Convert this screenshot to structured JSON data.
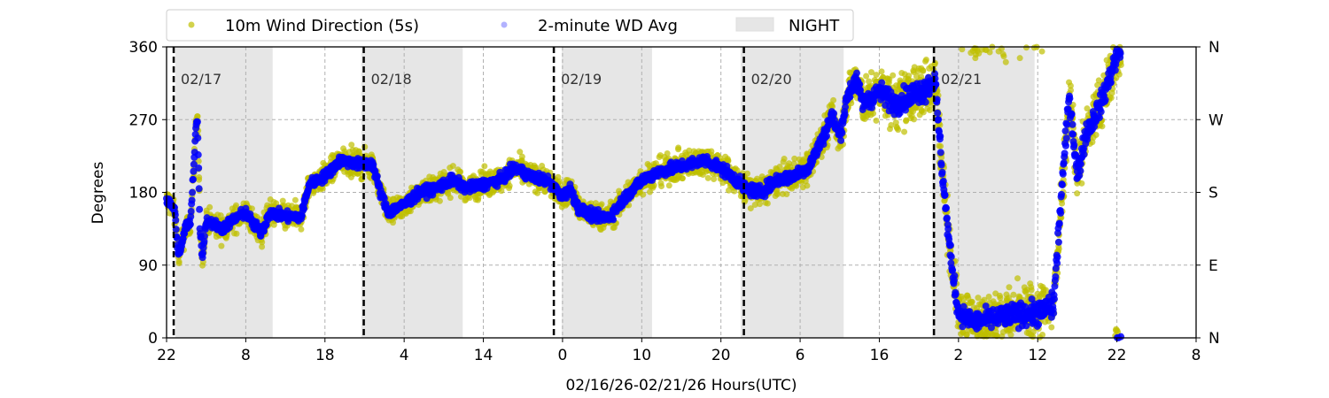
{
  "chart_data": {
    "type": "scatter",
    "title": "",
    "xlabel": "02/16/26-02/21/26  Hours(UTC)",
    "ylabel": "Degrees",
    "x_units": "hours since 02/16 22:00 UTC",
    "xlim": [
      0,
      130
    ],
    "ylim": [
      0,
      360
    ],
    "x_ticks": [
      0,
      10,
      20,
      30,
      40,
      50,
      60,
      70,
      80,
      90,
      100,
      110,
      120,
      130
    ],
    "x_tick_labels": [
      "22",
      "8",
      "18",
      "4",
      "14",
      "0",
      "10",
      "20",
      "6",
      "16",
      "2",
      "12",
      "22",
      "8"
    ],
    "y_ticks": [
      0,
      90,
      180,
      270,
      360
    ],
    "y_tick_labels": [
      "0",
      "90",
      "180",
      "270",
      "360"
    ],
    "right_axis_labels": [
      "N",
      "E",
      "S",
      "W",
      "N"
    ],
    "grid": true,
    "legend": {
      "placement": "top",
      "entries": [
        "10m Wind Direction (5s)",
        "2-minute WD Avg",
        "NIGHT"
      ]
    },
    "colors": {
      "wd_5s": "#bfbf00",
      "wd_avg": "#0000ff",
      "night": "#e6e6e6"
    },
    "day_markers": [
      {
        "x": 0.9,
        "label": "02/17"
      },
      {
        "x": 24.9,
        "label": "02/18"
      },
      {
        "x": 48.9,
        "label": "02/19"
      },
      {
        "x": 72.9,
        "label": "02/20"
      },
      {
        "x": 96.9,
        "label": "02/21"
      }
    ],
    "night_intervals": [
      [
        1.1,
        13.4
      ],
      [
        24.6,
        37.4
      ],
      [
        49.9,
        61.3
      ],
      [
        72.5,
        85.5
      ],
      [
        96.7,
        109.6
      ]
    ],
    "series": [
      {
        "name": "2-minute WD Avg",
        "x": [
          0,
          1,
          1.5,
          2.5,
          3,
          3.7,
          3.9,
          4.2,
          4.5,
          5,
          7,
          9,
          10,
          11,
          12,
          13,
          15,
          17,
          18,
          20,
          22,
          24,
          26,
          27,
          28,
          30,
          32,
          34,
          36,
          38,
          40,
          42,
          44,
          46,
          48,
          50,
          51,
          52,
          54,
          56,
          58,
          60,
          62,
          64,
          66,
          68,
          70,
          72,
          73,
          75,
          77,
          79,
          81,
          82,
          83,
          84,
          85,
          86,
          87,
          88,
          90,
          92,
          94,
          96,
          97,
          98,
          99,
          100,
          102,
          105,
          108,
          110,
          112,
          113,
          114,
          115,
          116,
          118,
          120,
          120.5
        ],
        "values": [
          170,
          160,
          100,
          140,
          140,
          260,
          270,
          140,
          100,
          145,
          135,
          150,
          155,
          140,
          130,
          155,
          150,
          150,
          190,
          200,
          220,
          215,
          215,
          180,
          155,
          165,
          180,
          185,
          195,
          185,
          190,
          195,
          210,
          200,
          195,
          175,
          185,
          160,
          150,
          150,
          175,
          195,
          205,
          210,
          215,
          220,
          210,
          195,
          185,
          180,
          195,
          200,
          210,
          230,
          250,
          275,
          250,
          300,
          320,
          290,
          305,
          290,
          300,
          310,
          320,
          200,
          100,
          30,
          20,
          25,
          30,
          30,
          40,
          180,
          300,
          200,
          250,
          290,
          350,
          355
        ]
      },
      {
        "name": "10m Wind Direction (5s)",
        "x": [
          0,
          48,
          80,
          86,
          96,
          100,
          112,
          120.5
        ],
        "spread_deg": [
          25,
          25,
          30,
          40,
          60,
          45,
          60,
          50
        ]
      }
    ]
  }
}
